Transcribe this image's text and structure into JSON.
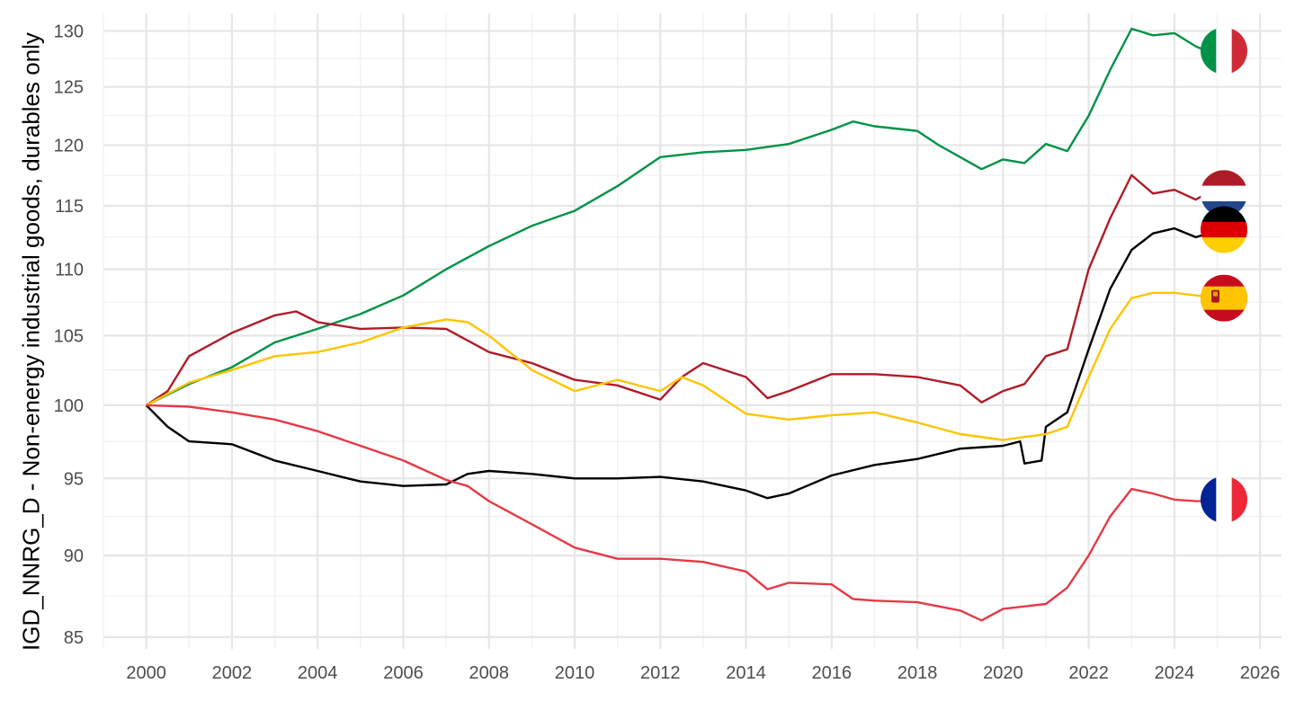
{
  "chart_data": {
    "type": "line",
    "title": "",
    "xlabel": "",
    "ylabel": "IGD_NNRG_D - Non-energy industrial goods, durables only",
    "y_scale": "log",
    "xlim": [
      1999.0,
      2026.5
    ],
    "ylim": [
      84.3,
      131.6
    ],
    "x_ticks": [
      2000,
      2002,
      2004,
      2006,
      2008,
      2010,
      2012,
      2014,
      2016,
      2018,
      2020,
      2022,
      2024,
      2026
    ],
    "y_ticks": [
      85,
      90,
      95,
      100,
      105,
      110,
      115,
      120,
      125,
      130
    ],
    "grid": true,
    "legend": "flag icons at line ends (right)",
    "series": [
      {
        "id": "italy",
        "color": "#009246",
        "flag": "italy-flag",
        "points": [
          [
            2000.0,
            100.0
          ],
          [
            2001.0,
            101.5
          ],
          [
            2002.0,
            102.7
          ],
          [
            2003.0,
            104.5
          ],
          [
            2004.0,
            105.5
          ],
          [
            2005.0,
            106.6
          ],
          [
            2006.0,
            108.0
          ],
          [
            2007.0,
            110.0
          ],
          [
            2008.0,
            111.8
          ],
          [
            2009.0,
            113.4
          ],
          [
            2010.0,
            114.6
          ],
          [
            2011.0,
            116.6
          ],
          [
            2012.0,
            119.0
          ],
          [
            2013.0,
            119.4
          ],
          [
            2014.0,
            119.6
          ],
          [
            2015.0,
            120.1
          ],
          [
            2016.0,
            121.3
          ],
          [
            2016.5,
            122.0
          ],
          [
            2017.0,
            121.6
          ],
          [
            2018.0,
            121.2
          ],
          [
            2018.5,
            120.0
          ],
          [
            2019.0,
            119.0
          ],
          [
            2019.5,
            118.0
          ],
          [
            2020.0,
            118.8
          ],
          [
            2020.5,
            118.5
          ],
          [
            2021.0,
            120.1
          ],
          [
            2021.5,
            119.5
          ],
          [
            2022.0,
            122.5
          ],
          [
            2022.5,
            126.5
          ],
          [
            2023.0,
            130.2
          ],
          [
            2023.5,
            129.6
          ],
          [
            2024.0,
            129.8
          ],
          [
            2024.5,
            128.6
          ],
          [
            2025.0,
            127.8
          ]
        ]
      },
      {
        "id": "netherlands",
        "color": "#ae1c28",
        "flag": "netherlands-flag",
        "points": [
          [
            2000.0,
            100.0
          ],
          [
            2000.5,
            101.0
          ],
          [
            2001.0,
            103.5
          ],
          [
            2002.0,
            105.2
          ],
          [
            2003.0,
            106.5
          ],
          [
            2003.5,
            106.8
          ],
          [
            2004.0,
            106.0
          ],
          [
            2005.0,
            105.5
          ],
          [
            2006.0,
            105.6
          ],
          [
            2007.0,
            105.5
          ],
          [
            2008.0,
            103.8
          ],
          [
            2009.0,
            103.0
          ],
          [
            2010.0,
            101.8
          ],
          [
            2011.0,
            101.4
          ],
          [
            2012.0,
            100.4
          ],
          [
            2012.5,
            102.0
          ],
          [
            2013.0,
            103.0
          ],
          [
            2014.0,
            102.0
          ],
          [
            2014.5,
            100.5
          ],
          [
            2015.0,
            101.0
          ],
          [
            2016.0,
            102.2
          ],
          [
            2017.0,
            102.2
          ],
          [
            2018.0,
            102.0
          ],
          [
            2019.0,
            101.4
          ],
          [
            2019.5,
            100.2
          ],
          [
            2020.0,
            101.0
          ],
          [
            2020.5,
            101.5
          ],
          [
            2021.0,
            103.5
          ],
          [
            2021.5,
            104.0
          ],
          [
            2022.0,
            110.0
          ],
          [
            2022.5,
            114.0
          ],
          [
            2023.0,
            117.5
          ],
          [
            2023.5,
            116.0
          ],
          [
            2024.0,
            116.3
          ],
          [
            2024.5,
            115.5
          ],
          [
            2025.0,
            116.5
          ]
        ]
      },
      {
        "id": "germany",
        "color": "#000000",
        "flag": "germany-flag",
        "points": [
          [
            2000.0,
            100.0
          ],
          [
            2000.5,
            98.5
          ],
          [
            2001.0,
            97.5
          ],
          [
            2002.0,
            97.3
          ],
          [
            2003.0,
            96.2
          ],
          [
            2004.0,
            95.5
          ],
          [
            2005.0,
            94.8
          ],
          [
            2006.0,
            94.5
          ],
          [
            2007.0,
            94.6
          ],
          [
            2007.5,
            95.3
          ],
          [
            2008.0,
            95.5
          ],
          [
            2009.0,
            95.3
          ],
          [
            2010.0,
            95.0
          ],
          [
            2011.0,
            95.0
          ],
          [
            2012.0,
            95.1
          ],
          [
            2013.0,
            94.8
          ],
          [
            2014.0,
            94.2
          ],
          [
            2014.5,
            93.7
          ],
          [
            2015.0,
            94.0
          ],
          [
            2016.0,
            95.2
          ],
          [
            2017.0,
            95.9
          ],
          [
            2018.0,
            96.3
          ],
          [
            2019.0,
            97.0
          ],
          [
            2020.0,
            97.2
          ],
          [
            2020.4,
            97.5
          ],
          [
            2020.5,
            96.0
          ],
          [
            2020.9,
            96.2
          ],
          [
            2021.0,
            98.5
          ],
          [
            2021.5,
            99.5
          ],
          [
            2022.0,
            104.0
          ],
          [
            2022.5,
            108.5
          ],
          [
            2023.0,
            111.5
          ],
          [
            2023.5,
            112.8
          ],
          [
            2024.0,
            113.2
          ],
          [
            2024.5,
            112.5
          ],
          [
            2025.0,
            113.0
          ]
        ]
      },
      {
        "id": "spain",
        "color": "#ffc400",
        "flag": "spain-flag",
        "points": [
          [
            2000.0,
            100.0
          ],
          [
            2001.0,
            101.6
          ],
          [
            2002.0,
            102.5
          ],
          [
            2003.0,
            103.5
          ],
          [
            2004.0,
            103.8
          ],
          [
            2005.0,
            104.5
          ],
          [
            2006.0,
            105.6
          ],
          [
            2007.0,
            106.2
          ],
          [
            2007.5,
            106.0
          ],
          [
            2008.0,
            105.0
          ],
          [
            2009.0,
            102.5
          ],
          [
            2010.0,
            101.0
          ],
          [
            2011.0,
            101.8
          ],
          [
            2012.0,
            101.0
          ],
          [
            2012.5,
            102.0
          ],
          [
            2013.0,
            101.4
          ],
          [
            2014.0,
            99.4
          ],
          [
            2015.0,
            99.0
          ],
          [
            2016.0,
            99.3
          ],
          [
            2017.0,
            99.5
          ],
          [
            2018.0,
            98.8
          ],
          [
            2019.0,
            98.0
          ],
          [
            2020.0,
            97.6
          ],
          [
            2021.0,
            98.0
          ],
          [
            2021.5,
            98.5
          ],
          [
            2022.0,
            102.0
          ],
          [
            2022.5,
            105.5
          ],
          [
            2023.0,
            107.8
          ],
          [
            2023.5,
            108.2
          ],
          [
            2024.0,
            108.2
          ],
          [
            2024.5,
            108.0
          ],
          [
            2025.0,
            107.8
          ]
        ]
      },
      {
        "id": "france",
        "color": "#e63946",
        "flag": "france-flag",
        "points": [
          [
            2000.0,
            100.0
          ],
          [
            2001.0,
            99.9
          ],
          [
            2002.0,
            99.5
          ],
          [
            2003.0,
            99.0
          ],
          [
            2004.0,
            98.2
          ],
          [
            2005.0,
            97.2
          ],
          [
            2006.0,
            96.2
          ],
          [
            2007.0,
            94.9
          ],
          [
            2007.5,
            94.5
          ],
          [
            2008.0,
            93.5
          ],
          [
            2009.0,
            92.0
          ],
          [
            2010.0,
            90.5
          ],
          [
            2011.0,
            89.8
          ],
          [
            2012.0,
            89.8
          ],
          [
            2013.0,
            89.6
          ],
          [
            2014.0,
            89.0
          ],
          [
            2014.5,
            87.9
          ],
          [
            2015.0,
            88.3
          ],
          [
            2016.0,
            88.2
          ],
          [
            2016.5,
            87.3
          ],
          [
            2017.0,
            87.2
          ],
          [
            2018.0,
            87.1
          ],
          [
            2019.0,
            86.6
          ],
          [
            2019.5,
            86.0
          ],
          [
            2020.0,
            86.7
          ],
          [
            2021.0,
            87.0
          ],
          [
            2021.5,
            88.0
          ],
          [
            2022.0,
            90.0
          ],
          [
            2022.5,
            92.5
          ],
          [
            2023.0,
            94.3
          ],
          [
            2023.5,
            94.0
          ],
          [
            2024.0,
            93.6
          ],
          [
            2024.5,
            93.5
          ],
          [
            2025.0,
            93.5
          ]
        ]
      }
    ]
  }
}
